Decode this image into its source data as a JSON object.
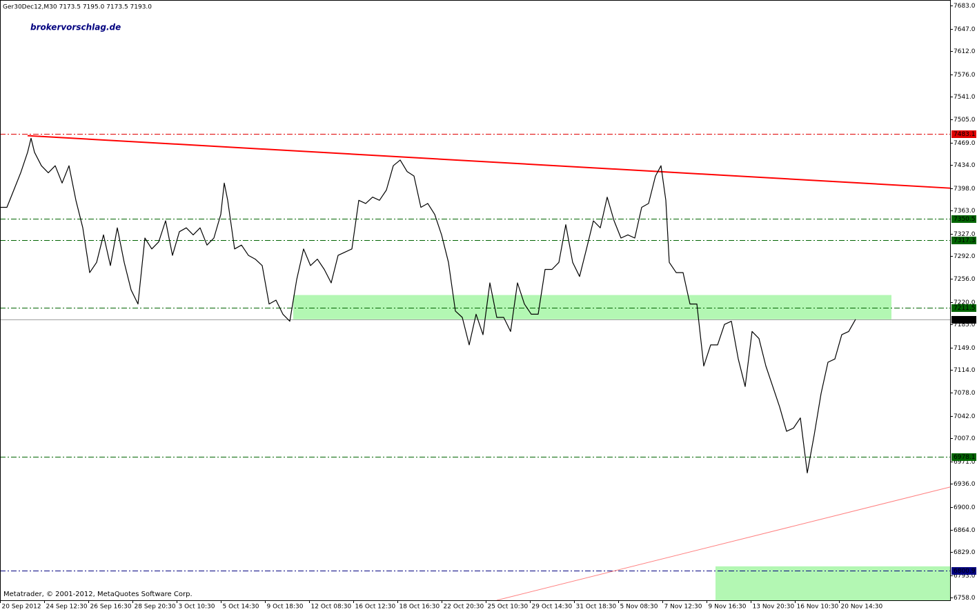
{
  "chart_data": {
    "type": "line",
    "title": "Ger30Dec12,M30  7173.5 7195.0 7173.5 7193.0",
    "watermark": "brokervorschlag.de",
    "footer": "Metatrader, © 2001-2012, MetaQuotes Software Corp.",
    "grid": false,
    "xlim": [
      0,
      1377
    ],
    "ylim": [
      6754,
      7692
    ],
    "xticks": [
      {
        "value": 0,
        "label": "20 Sep 2012"
      },
      {
        "value": 64,
        "label": "24 Sep 12:30"
      },
      {
        "value": 128,
        "label": "26 Sep 16:30"
      },
      {
        "value": 192,
        "label": "28 Sep 20:30"
      },
      {
        "value": 256,
        "label": "3 Oct 10:30"
      },
      {
        "value": 320,
        "label": "5 Oct 14:30"
      },
      {
        "value": 384,
        "label": "9 Oct 18:30"
      },
      {
        "value": 448,
        "label": "12 Oct 08:30"
      },
      {
        "value": 512,
        "label": "16 Oct 12:30"
      },
      {
        "value": 576,
        "label": "18 Oct 16:30"
      },
      {
        "value": 640,
        "label": "22 Oct 20:30"
      },
      {
        "value": 704,
        "label": "25 Oct 10:30"
      },
      {
        "value": 768,
        "label": "29 Oct 14:30"
      },
      {
        "value": 832,
        "label": "31 Oct 18:30"
      },
      {
        "value": 896,
        "label": "5 Nov 08:30"
      },
      {
        "value": 960,
        "label": "7 Nov 12:30"
      },
      {
        "value": 1024,
        "label": "9 Nov 16:30"
      },
      {
        "value": 1088,
        "label": "13 Nov 20:30"
      },
      {
        "value": 1152,
        "label": "16 Nov 10:30"
      },
      {
        "value": 1216,
        "label": "20 Nov 14:30"
      }
    ],
    "yticks": [
      {
        "value": 7683,
        "label": "7683.0"
      },
      {
        "value": 7647,
        "label": "7647.0"
      },
      {
        "value": 7612,
        "label": "7612.0"
      },
      {
        "value": 7576,
        "label": "7576.0"
      },
      {
        "value": 7541,
        "label": "7541.0"
      },
      {
        "value": 7505,
        "label": "7505.0"
      },
      {
        "value": 7469,
        "label": "7469.0"
      },
      {
        "value": 7434,
        "label": "7434.0"
      },
      {
        "value": 7398,
        "label": "7398.0"
      },
      {
        "value": 7363,
        "label": "7363.0"
      },
      {
        "value": 7327,
        "label": "7327.0"
      },
      {
        "value": 7292,
        "label": "7292.0"
      },
      {
        "value": 7256,
        "label": "7256.0"
      },
      {
        "value": 7220,
        "label": "7220.0"
      },
      {
        "value": 7185,
        "label": "7185.0"
      },
      {
        "value": 7149,
        "label": "7149.0"
      },
      {
        "value": 7114,
        "label": "7114.0"
      },
      {
        "value": 7078,
        "label": "7078.0"
      },
      {
        "value": 7042,
        "label": "7042.0"
      },
      {
        "value": 7007,
        "label": "7007.0"
      },
      {
        "value": 6971,
        "label": "6971.0"
      },
      {
        "value": 6936,
        "label": "6936.0"
      },
      {
        "value": 6900,
        "label": "6900.0"
      },
      {
        "value": 6864,
        "label": "6864.0"
      },
      {
        "value": 6829,
        "label": "6829.0"
      },
      {
        "value": 6793,
        "label": "6793.0"
      },
      {
        "value": 6758,
        "label": "6758.0"
      }
    ],
    "x": [
      0,
      10,
      20,
      30,
      40,
      45,
      50,
      60,
      70,
      80,
      90,
      100,
      110,
      120,
      130,
      140,
      150,
      160,
      170,
      180,
      190,
      200,
      210,
      220,
      230,
      240,
      250,
      260,
      270,
      280,
      290,
      300,
      310,
      320,
      325,
      330,
      340,
      350,
      360,
      370,
      380,
      390,
      400,
      410,
      420,
      430,
      440,
      450,
      460,
      470,
      480,
      490,
      500,
      510,
      520,
      530,
      540,
      550,
      560,
      570,
      580,
      590,
      600,
      610,
      620,
      630,
      640,
      650,
      660,
      670,
      680,
      690,
      700,
      710,
      720,
      730,
      740,
      750,
      760,
      770,
      780,
      790,
      800,
      810,
      820,
      830,
      840,
      850,
      860,
      870,
      880,
      890,
      900,
      910,
      920,
      930,
      940,
      950,
      958,
      965,
      970,
      980,
      990,
      1000,
      1010,
      1020,
      1030,
      1040,
      1050,
      1060,
      1070,
      1080,
      1090,
      1100,
      1110,
      1120,
      1130,
      1140,
      1150,
      1160,
      1170,
      1180,
      1190,
      1200,
      1210,
      1220,
      1230,
      1240
    ],
    "series": [
      {
        "color": "#000000",
        "values": [
          7368,
          7368,
          7395,
          7422,
          7454,
          7476,
          7454,
          7433,
          7422,
          7433,
          7406,
          7433,
          7379,
          7336,
          7266,
          7282,
          7325,
          7277,
          7336,
          7282,
          7239,
          7217,
          7320,
          7303,
          7314,
          7347,
          7293,
          7330,
          7336,
          7325,
          7336,
          7309,
          7320,
          7357,
          7406,
          7379,
          7303,
          7309,
          7293,
          7287,
          7277,
          7217,
          7223,
          7201,
          7190,
          7255,
          7303,
          7277,
          7287,
          7271,
          7250,
          7293,
          7298,
          7303,
          7379,
          7374,
          7384,
          7379,
          7395,
          7433,
          7442,
          7424,
          7417,
          7368,
          7374,
          7357,
          7325,
          7282,
          7206,
          7196,
          7153,
          7201,
          7169,
          7250,
          7196,
          7196,
          7174,
          7250,
          7217,
          7201,
          7201,
          7271,
          7271,
          7282,
          7341,
          7282,
          7260,
          7303,
          7347,
          7336,
          7384,
          7347,
          7320,
          7325,
          7320,
          7368,
          7374,
          7417,
          7433,
          7379,
          7282,
          7266,
          7266,
          7217,
          7217,
          7120,
          7153,
          7153,
          7185,
          7190,
          7131,
          7088,
          7174,
          7163,
          7120,
          7088,
          7056,
          7018,
          7023,
          7039,
          6953,
          7012,
          7077,
          7126,
          7131,
          7169,
          7174,
          7193
        ]
      }
    ],
    "levels": [
      {
        "value": 7483.1,
        "label": "7483.1",
        "color": "#e00000"
      },
      {
        "value": 7350.5,
        "label": "7350.5",
        "color": "#006400"
      },
      {
        "value": 7317.3,
        "label": "7317.3",
        "color": "#006400"
      },
      {
        "value": 7211.5,
        "label": "7211.5",
        "color": "#006400"
      },
      {
        "value": 7193,
        "label": "7193.0",
        "color": "#000000"
      },
      {
        "value": 6978.1,
        "label": "6978.1",
        "color": "#006400"
      },
      {
        "value": 6800.9,
        "label": "6800.9",
        "color": "#00007f"
      }
    ],
    "trendlines": [
      {
        "x": [
          40,
          1377
        ],
        "y": [
          7480,
          7398
        ],
        "color": "#ff0000"
      },
      {
        "x": [
          720,
          1377
        ],
        "y": [
          6754,
          6931
        ],
        "color": "#ff8080"
      }
    ],
    "zones": [
      {
        "x": [
          425,
          1292
        ],
        "y": [
          7193,
          7231
        ],
        "color": "#b3f7b3"
      },
      {
        "x": [
          1037,
          1377
        ],
        "y": [
          6754,
          6807
        ],
        "color": "#b3f7b3"
      }
    ]
  }
}
